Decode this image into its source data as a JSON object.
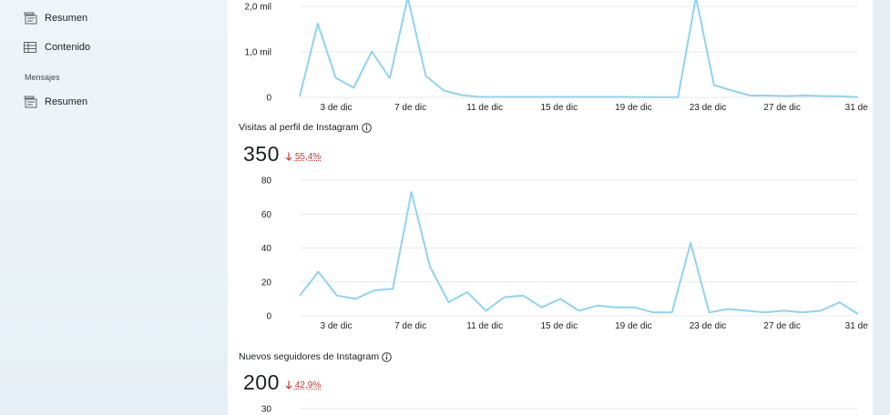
{
  "sidebar": {
    "items": [
      {
        "label": "Resumen",
        "icon": "overview-icon"
      },
      {
        "label": "Contenido",
        "icon": "table-icon"
      },
      {
        "label": "Resumen",
        "icon": "overview-icon"
      }
    ],
    "section_heading": "Mensajes"
  },
  "colors": {
    "line": "#8fd3f4",
    "grid": "#e6e9ee",
    "negative": "#c7372f"
  },
  "sections": [
    {
      "title": "Visitas al perfil de Instagram",
      "value": "350",
      "delta_direction": "down",
      "delta": "55,4%"
    },
    {
      "title": "Nuevos seguidores de Instagram",
      "value": "200",
      "delta_direction": "down",
      "delta": "42,9%"
    }
  ],
  "chart_data": [
    {
      "type": "line",
      "x_ticks": [
        "3 de dic",
        "7 de dic",
        "11 de dic",
        "15 de dic",
        "19 de dic",
        "23 de dic",
        "27 de dic",
        "31 de"
      ],
      "y_ticks": [
        "0",
        "1,0 mil",
        "2,0 mil"
      ],
      "ylim": [
        0,
        2000
      ],
      "grid": true,
      "values": [
        20,
        1620,
        430,
        210,
        1010,
        420,
        2200,
        470,
        150,
        50,
        10,
        10,
        10,
        10,
        10,
        10,
        10,
        10,
        10,
        5,
        5,
        5,
        2200,
        270,
        150,
        40,
        40,
        30,
        40,
        30,
        25,
        5
      ]
    },
    {
      "type": "line",
      "title": "Visitas al perfil de Instagram",
      "x_ticks": [
        "3 de dic",
        "7 de dic",
        "11 de dic",
        "15 de dic",
        "19 de dic",
        "23 de dic",
        "27 de dic",
        "31 de"
      ],
      "y_ticks": [
        "0",
        "20",
        "40",
        "60",
        "80"
      ],
      "ylim": [
        0,
        80
      ],
      "grid": true,
      "values": [
        12,
        26,
        12,
        10,
        15,
        16,
        73,
        29,
        8,
        14,
        3,
        11,
        12,
        5,
        10,
        3,
        6,
        5,
        5,
        2,
        2,
        43,
        2,
        4,
        3,
        2,
        3,
        2,
        3,
        8,
        1
      ]
    },
    {
      "type": "line",
      "title": "Nuevos seguidores de Instagram",
      "y_ticks": [
        "30"
      ],
      "grid": true,
      "values": []
    }
  ]
}
